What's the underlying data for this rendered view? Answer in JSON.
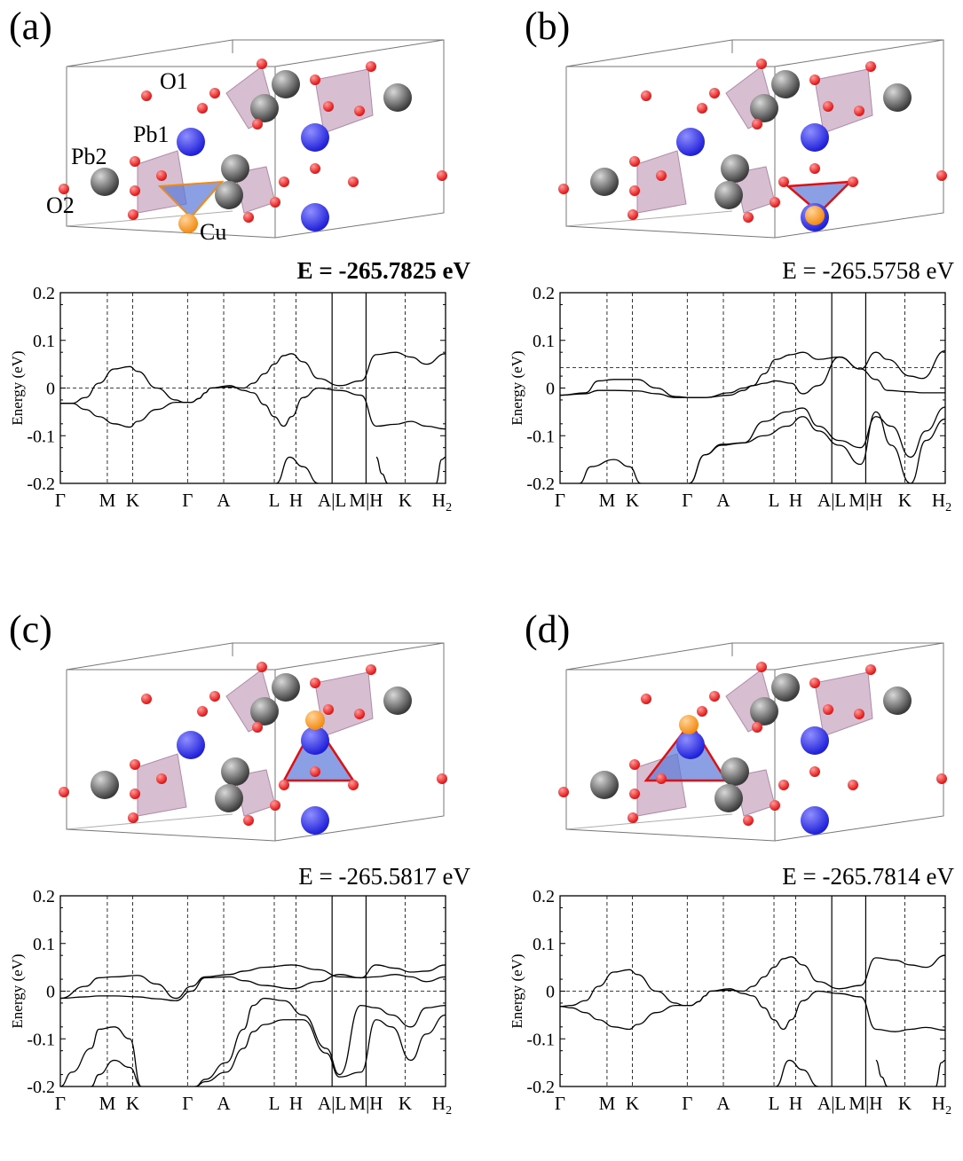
{
  "panels": [
    {
      "letter": "(a)",
      "energy_label": "E = -265.7825 eV",
      "energy_bold": true,
      "atom_labels": [
        "O1",
        "Pb1",
        "Pb2",
        "O2",
        "Cu"
      ],
      "cu_site": "bottom-left"
    },
    {
      "letter": "(b)",
      "energy_label": "E = -265.5758  eV",
      "energy_bold": false,
      "atom_labels": [],
      "cu_site": "bottom-right"
    },
    {
      "letter": "(c)",
      "energy_label": "E = -265.5817 eV",
      "energy_bold": false,
      "atom_labels": [],
      "cu_site": "top-right"
    },
    {
      "letter": "(d)",
      "energy_label": "E = -265.7814 eV",
      "energy_bold": false,
      "atom_labels": [],
      "cu_site": "top-left"
    }
  ],
  "colors": {
    "pb_dark": "#3a3a3a",
    "pb_blue": "#1f1fd9",
    "oxygen": "#e01010",
    "copper": "#f28a10",
    "phosphate_tetra": "#c9a9c2",
    "cu_polyhedron": "#5a78d8"
  },
  "chart_data": [
    {
      "type": "line",
      "panel": "(a)",
      "ylabel": "Energy (eV)",
      "ylim": [
        -0.2,
        0.2
      ],
      "yticks": [
        "0.2",
        "0.1",
        "0",
        "-0.1",
        "-0.2"
      ],
      "kpath": [
        "Γ",
        "M",
        "K",
        "Γ",
        "A",
        "L",
        "H",
        "A|L",
        "M|H",
        "K",
        "H"
      ],
      "kpath_last_subscript": "2",
      "fermi_level": 0.0,
      "series": [
        {
          "x": [
            0,
            0.3,
            0.65,
            1,
            1.4,
            1.8,
            2,
            2.5,
            3,
            3.2,
            3.4,
            3.6,
            3.76,
            3.9,
            4.4,
            4.76,
            5,
            5.3,
            5.55,
            5.8,
            6,
            6.3,
            6.7,
            7.25,
            7.8,
            8.2,
            8.7,
            9.1,
            9.5,
            10
          ],
          "y": [
            -0.032,
            -0.032,
            -0.02,
            0.01,
            0.04,
            0.045,
            0.035,
            0.0,
            -0.025,
            -0.03,
            -0.03,
            -0.022,
            -0.01,
            0.0,
            0.005,
            -0.005,
            -0.01,
            -0.035,
            -0.06,
            -0.08,
            -0.06,
            -0.02,
            0.0,
            -0.005,
            -0.015,
            -0.08,
            -0.076,
            -0.07,
            -0.08,
            -0.086
          ]
        },
        {
          "x": [
            0,
            0.3,
            0.65,
            1,
            1.4,
            1.8,
            2,
            2.5,
            3,
            3.2,
            3.4,
            3.6,
            3.76,
            3.9,
            4.4,
            4.76,
            5,
            5.3,
            5.55,
            5.8,
            6,
            6.3,
            6.7,
            7.25,
            7.8,
            8.2,
            8.7,
            9.1,
            9.5,
            10
          ],
          "y": [
            -0.032,
            -0.032,
            -0.045,
            -0.06,
            -0.075,
            -0.082,
            -0.07,
            -0.045,
            -0.03,
            -0.03,
            -0.03,
            -0.022,
            -0.01,
            0.0,
            0.002,
            0.0,
            0.01,
            0.03,
            0.05,
            0.068,
            0.072,
            0.055,
            0.02,
            0.005,
            0.015,
            0.07,
            0.075,
            0.065,
            0.05,
            0.072
          ]
        },
        {
          "x": [
            5.6,
            5.95,
            6.3,
            6.7
          ],
          "y": [
            -0.2,
            -0.145,
            -0.165,
            -0.2
          ]
        },
        {
          "x": [
            8.2,
            8.35,
            8.5
          ],
          "y": [
            -0.145,
            -0.18,
            -0.2
          ]
        },
        {
          "x": [
            9.75,
            9.9,
            10
          ],
          "y": [
            -0.2,
            -0.15,
            -0.145
          ]
        }
      ]
    },
    {
      "type": "line",
      "panel": "(b)",
      "ylabel": "Energy (eV)",
      "ylim": [
        -0.2,
        0.2
      ],
      "yticks": [
        "0.2",
        "0.1",
        "0",
        "-0.1",
        "-0.2"
      ],
      "kpath": [
        "Γ",
        "M",
        "K",
        "Γ",
        "A",
        "L",
        "H",
        "A|L",
        "M|H",
        "K",
        "H"
      ],
      "kpath_last_subscript": "2",
      "fermi_level": 0.043,
      "series": [
        {
          "x": [
            0,
            0.65,
            1,
            1.4,
            2,
            2.5,
            3,
            3.4,
            3.76,
            4.4,
            4.76,
            5,
            5.3,
            5.6,
            6,
            6.3,
            6.7,
            7.25,
            7.8,
            8.2,
            8.5,
            9.1,
            9.4,
            10
          ],
          "y": [
            -0.015,
            -0.01,
            0.015,
            0.018,
            0.018,
            0.0,
            -0.018,
            -0.02,
            -0.02,
            -0.015,
            -0.005,
            0.005,
            0.03,
            0.06,
            0.07,
            0.075,
            0.06,
            0.065,
            0.04,
            0.075,
            0.06,
            0.025,
            0.02,
            0.078
          ]
        },
        {
          "x": [
            0,
            0.65,
            1,
            1.4,
            2,
            2.5,
            3,
            3.4,
            3.76,
            4.4,
            4.76,
            5,
            5.3,
            5.6,
            6,
            6.3,
            6.7,
            7.25,
            7.8,
            8.2,
            8.5,
            9.1,
            9.4,
            10
          ],
          "y": [
            -0.015,
            -0.012,
            -0.005,
            -0.005,
            -0.006,
            -0.012,
            -0.02,
            -0.02,
            -0.02,
            -0.01,
            0.0,
            0.005,
            0.01,
            0.015,
            0.01,
            -0.012,
            0.005,
            0.065,
            0.04,
            0.018,
            -0.005,
            -0.008,
            -0.01,
            -0.01
          ]
        },
        {
          "x": [
            0.5,
            0.8,
            1.4,
            1.8,
            2.1
          ],
          "y": [
            -0.2,
            -0.165,
            -0.15,
            -0.165,
            -0.2
          ]
        },
        {
          "x": [
            3.35,
            3.76,
            4.2,
            4.76,
            5.3,
            5.9,
            6.3,
            6.7,
            7.25,
            7.8,
            8.2,
            8.6,
            9.1,
            9.5,
            10
          ],
          "y": [
            -0.2,
            -0.14,
            -0.118,
            -0.115,
            -0.07,
            -0.05,
            -0.042,
            -0.08,
            -0.11,
            -0.125,
            -0.06,
            -0.08,
            -0.145,
            -0.09,
            -0.04
          ]
        },
        {
          "x": [
            3.35,
            3.76,
            4.2,
            4.76,
            5.3,
            5.9,
            6.3,
            6.7,
            7.25,
            7.8,
            8.2,
            8.6,
            9.1,
            9.5,
            10
          ],
          "y": [
            -0.2,
            -0.14,
            -0.12,
            -0.115,
            -0.1,
            -0.08,
            -0.06,
            -0.09,
            -0.12,
            -0.16,
            -0.05,
            -0.12,
            -0.2,
            -0.11,
            -0.065
          ]
        }
      ]
    },
    {
      "type": "line",
      "panel": "(c)",
      "ylabel": "Energy (eV)",
      "ylim": [
        -0.2,
        0.2
      ],
      "yticks": [
        "0.2",
        "0.1",
        "0",
        "-0.1",
        "-0.2"
      ],
      "kpath": [
        "Γ",
        "M",
        "K",
        "Γ",
        "A",
        "L",
        "H",
        "A|L",
        "M|H",
        "K",
        "H"
      ],
      "kpath_last_subscript": "2",
      "fermi_level": 0.0,
      "series": [
        {
          "x": [
            0,
            0.65,
            1,
            1.4,
            2,
            2.5,
            3,
            3.4,
            3.76,
            4.4,
            4.76,
            5.3,
            6,
            6.7,
            7.25,
            7.8,
            8.2,
            8.7,
            9.1,
            9.5,
            10
          ],
          "y": [
            -0.015,
            0.01,
            0.028,
            0.03,
            0.033,
            0.015,
            -0.015,
            0.01,
            0.03,
            0.035,
            0.042,
            0.05,
            0.055,
            0.045,
            0.03,
            0.028,
            0.055,
            0.048,
            0.04,
            0.042,
            0.055
          ]
        },
        {
          "x": [
            0,
            0.65,
            1,
            1.4,
            2,
            2.5,
            3,
            3.4,
            3.76,
            4.4,
            4.76,
            5.3,
            6,
            6.7,
            7.25,
            7.8,
            8.2,
            8.7,
            9.1,
            9.5,
            10
          ],
          "y": [
            -0.015,
            -0.012,
            -0.01,
            -0.01,
            -0.012,
            -0.016,
            -0.02,
            0.0,
            0.028,
            0.03,
            0.022,
            0.012,
            0.005,
            0.02,
            0.035,
            0.028,
            0.03,
            0.035,
            0.03,
            0.02,
            0.03
          ]
        },
        {
          "x": [
            0,
            0.3,
            0.8,
            1,
            1.4,
            1.8,
            2.1
          ],
          "y": [
            -0.2,
            -0.17,
            -0.12,
            -0.08,
            -0.075,
            -0.1,
            -0.2
          ]
        },
        {
          "x": [
            0.8,
            1,
            1.4,
            1.8,
            2.1
          ],
          "y": [
            -0.2,
            -0.175,
            -0.145,
            -0.16,
            -0.2
          ]
        },
        {
          "x": [
            3.5,
            3.76,
            4.3,
            4.76,
            5,
            5.3,
            5.8,
            6.3,
            6.9,
            7.25,
            7.8,
            8.2,
            8.6,
            9.1,
            9.5,
            10
          ],
          "y": [
            -0.2,
            -0.185,
            -0.15,
            -0.08,
            -0.03,
            -0.015,
            -0.02,
            -0.05,
            -0.12,
            -0.175,
            -0.03,
            -0.035,
            -0.05,
            -0.075,
            -0.035,
            -0.03
          ]
        },
        {
          "x": [
            3.5,
            3.76,
            4.3,
            4.76,
            5,
            5.3,
            5.8,
            6.3,
            6.9,
            7.25,
            7.8,
            8.2,
            8.6,
            9.1,
            9.5,
            10
          ],
          "y": [
            -0.2,
            -0.19,
            -0.17,
            -0.12,
            -0.085,
            -0.07,
            -0.06,
            -0.06,
            -0.13,
            -0.18,
            -0.17,
            -0.06,
            -0.075,
            -0.145,
            -0.09,
            -0.05
          ]
        }
      ]
    },
    {
      "type": "line",
      "panel": "(d)",
      "ylabel": "Energy (eV)",
      "ylim": [
        -0.2,
        0.2
      ],
      "yticks": [
        "0.2",
        "0.1",
        "0",
        "-0.1",
        "-0.2"
      ],
      "kpath": [
        "Γ",
        "M",
        "K",
        "Γ",
        "A",
        "L",
        "H",
        "A|L",
        "M|H",
        "K",
        "H"
      ],
      "kpath_last_subscript": "2",
      "fermi_level": 0.0,
      "series": [
        {
          "x": [
            0,
            0.3,
            0.65,
            1,
            1.4,
            1.8,
            2,
            2.5,
            3,
            3.2,
            3.4,
            3.6,
            3.76,
            3.9,
            4.4,
            4.76,
            5,
            5.3,
            5.55,
            5.8,
            6,
            6.3,
            6.7,
            7.25,
            7.8,
            8.2,
            8.7,
            9.1,
            9.5,
            10
          ],
          "y": [
            -0.032,
            -0.03,
            -0.02,
            0.01,
            0.04,
            0.045,
            0.035,
            0.0,
            -0.025,
            -0.03,
            -0.03,
            -0.022,
            -0.01,
            0.0,
            0.005,
            -0.005,
            -0.01,
            -0.035,
            -0.06,
            -0.08,
            -0.06,
            -0.02,
            0.0,
            -0.005,
            -0.012,
            -0.08,
            -0.085,
            -0.08,
            -0.076,
            -0.082
          ]
        },
        {
          "x": [
            0,
            0.3,
            0.65,
            1,
            1.4,
            1.8,
            2,
            2.5,
            3,
            3.2,
            3.4,
            3.6,
            3.76,
            3.9,
            4.4,
            4.76,
            5,
            5.3,
            5.55,
            5.8,
            6,
            6.3,
            6.7,
            7.25,
            7.8,
            8.2,
            8.7,
            9.1,
            9.5,
            10
          ],
          "y": [
            -0.032,
            -0.035,
            -0.045,
            -0.06,
            -0.075,
            -0.08,
            -0.07,
            -0.045,
            -0.03,
            -0.03,
            -0.03,
            -0.022,
            -0.01,
            0.0,
            0.002,
            0.0,
            0.01,
            0.03,
            0.05,
            0.068,
            0.072,
            0.055,
            0.02,
            0.005,
            0.012,
            0.07,
            0.065,
            0.055,
            0.05,
            0.075
          ]
        },
        {
          "x": [
            5.6,
            5.95,
            6.3,
            6.7
          ],
          "y": [
            -0.2,
            -0.145,
            -0.165,
            -0.2
          ]
        },
        {
          "x": [
            8.2,
            8.35,
            8.5
          ],
          "y": [
            -0.145,
            -0.18,
            -0.2
          ]
        },
        {
          "x": [
            9.75,
            9.9,
            10
          ],
          "y": [
            -0.2,
            -0.15,
            -0.145
          ]
        }
      ]
    }
  ]
}
